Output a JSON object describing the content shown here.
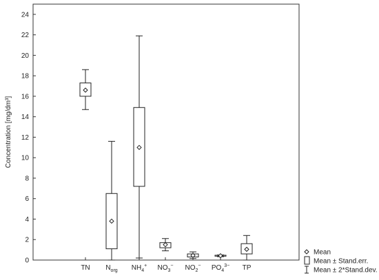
{
  "chart_data": {
    "type": "boxplot",
    "ylabel": "Concentration [mg/dm³]",
    "ylim": [
      0,
      25
    ],
    "yticks": [
      0,
      2,
      4,
      6,
      8,
      10,
      12,
      14,
      16,
      18,
      20,
      22,
      24
    ],
    "grid": false,
    "legend_position": "bottom-right",
    "legend": [
      {
        "symbol": "diamond",
        "label": "Mean"
      },
      {
        "symbol": "box",
        "label": "Mean ± Stand.err."
      },
      {
        "symbol": "whisker",
        "label": "Mean ± 2*Stand.dev."
      }
    ],
    "categories": [
      {
        "label": "TN",
        "sub": "",
        "sup": ""
      },
      {
        "label": "N",
        "sub": "org",
        "sup": ""
      },
      {
        "label": "NH",
        "sub": "4",
        "sup": "+"
      },
      {
        "label": "NO",
        "sub": "3",
        "sup": "−"
      },
      {
        "label": "NO",
        "sub": "2",
        "sup": "−"
      },
      {
        "label": "PO",
        "sub": "4",
        "sup": "3−"
      },
      {
        "label": "TP",
        "sub": "",
        "sup": ""
      }
    ],
    "series": [
      {
        "mean": 16.6,
        "box_low": 16.0,
        "box_high": 17.3,
        "whisker_low": 14.7,
        "whisker_high": 18.6
      },
      {
        "mean": 3.8,
        "box_low": 1.1,
        "box_high": 6.5,
        "whisker_low": 0.0,
        "whisker_high": 11.6
      },
      {
        "mean": 11.0,
        "box_low": 7.2,
        "box_high": 14.9,
        "whisker_low": 0.2,
        "whisker_high": 21.9
      },
      {
        "mean": 1.5,
        "box_low": 1.2,
        "box_high": 1.7,
        "whisker_low": 0.9,
        "whisker_high": 2.1
      },
      {
        "mean": 0.45,
        "box_low": 0.3,
        "box_high": 0.6,
        "whisker_low": 0.15,
        "whisker_high": 0.8
      },
      {
        "mean": 0.42,
        "box_low": 0.38,
        "box_high": 0.47,
        "whisker_low": 0.33,
        "whisker_high": 0.5
      },
      {
        "mean": 1.05,
        "box_low": 0.6,
        "box_high": 1.6,
        "whisker_low": 0.0,
        "whisker_high": 2.4
      }
    ]
  }
}
